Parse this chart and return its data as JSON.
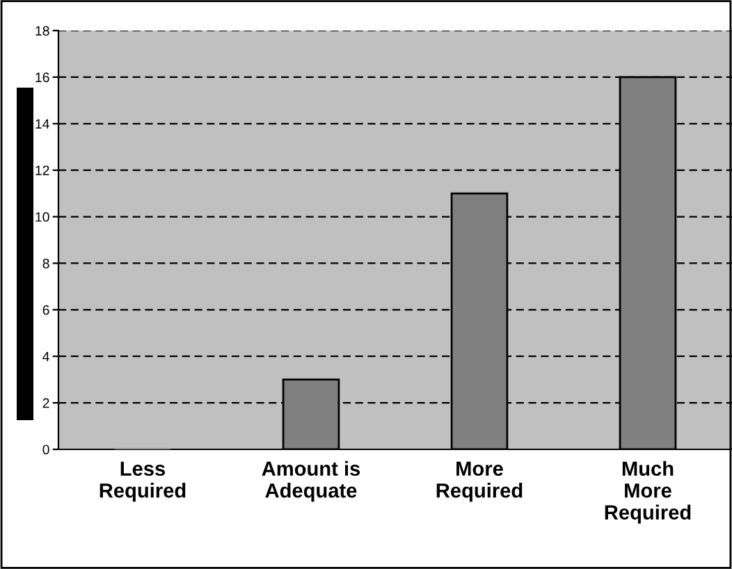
{
  "chart_data": {
    "type": "bar",
    "categories": [
      "Less\nRequired",
      "Amount is\nAdequate",
      "More\nRequired",
      "Much\nMore\nRequired"
    ],
    "values": [
      0,
      3,
      11,
      16
    ],
    "color": "#808080",
    "ylim": [
      0,
      18
    ],
    "yticks": [
      0,
      2,
      4,
      6,
      8,
      10,
      12,
      14,
      16,
      18
    ],
    "grid": "y",
    "line_style": "dashed",
    "legend": false
  }
}
